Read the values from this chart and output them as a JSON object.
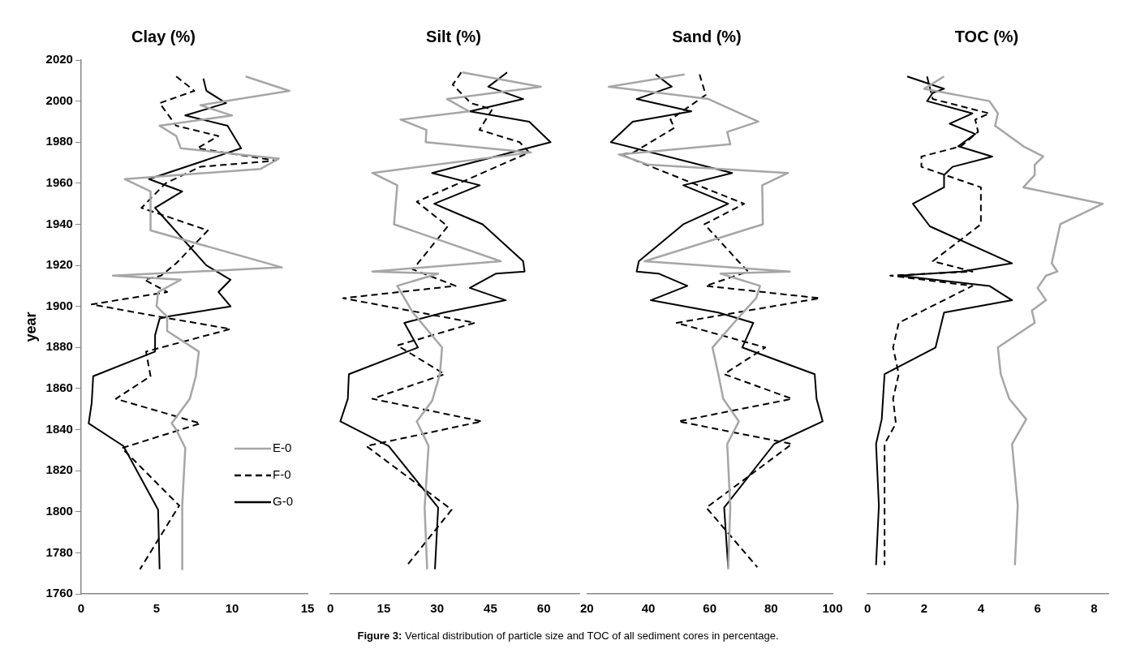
{
  "chart_data": [
    {
      "type": "line",
      "title": "Clay (%)",
      "ylabel": "year",
      "xlim": [
        0,
        15
      ],
      "xticks": [
        0,
        5,
        10,
        15
      ],
      "ylim": [
        1760,
        2020
      ],
      "yticks": [
        1760,
        1780,
        1800,
        1820,
        1840,
        1860,
        1880,
        1900,
        1920,
        1940,
        1960,
        1980,
        2000,
        2020
      ],
      "marker": "none",
      "legend": "bottom right",
      "annotations": [
        "Figure 3: Vertical distribution of particle size and TOC of all sediment cores in percentage."
      ],
      "series": [
        {
          "name": "E-0",
          "color": "#a6a6a6",
          "x": [
            10.9,
            13.8,
            7.9,
            10.0,
            5.2,
            6.3,
            6.6,
            13.1,
            11.9,
            2.9,
            4.6,
            4.6,
            13.3,
            2.1,
            6.6,
            5.1,
            5.0,
            5.7,
            5.7,
            7.8,
            7.6,
            7.2,
            6.4,
            6.0,
            6.3,
            6.9,
            6.7,
            6.7
          ],
          "values": [
            2012,
            2005,
            1998,
            1993,
            1988,
            1983,
            1977,
            1972,
            1967,
            1962,
            1956,
            1937,
            1919,
            1915,
            1913,
            1907,
            1900,
            1895,
            1888,
            1878,
            1866,
            1855,
            1847,
            1843,
            1840,
            1831,
            1803,
            1772
          ]
        },
        {
          "name": "F-0",
          "color": "#000000",
          "line_style": "dashed",
          "x": [
            6.3,
            7.5,
            5.2,
            6.3,
            9.1,
            7.7,
            12.9,
            7.9,
            5.6,
            4.0,
            8.4,
            6.3,
            5.3,
            4.2,
            5.7,
            0.7,
            4.4,
            9.9,
            4.3,
            4.6,
            2.3,
            7.9,
            2.7,
            6.5,
            3.9
          ],
          "values": [
            2012,
            2005,
            1999,
            1988,
            1983,
            1977,
            1971,
            1968,
            1960,
            1948,
            1937,
            1921,
            1915,
            1913,
            1907,
            1901,
            1896,
            1889,
            1878,
            1866,
            1855,
            1843,
            1831,
            1803,
            1772
          ]
        },
        {
          "name": "G-0",
          "color": "#000000",
          "x": [
            8.1,
            8.3,
            9.6,
            6.9,
            9.7,
            10.6,
            4.5,
            6.7,
            4.9,
            8.3,
            9.9,
            9.1,
            9.9,
            5.7,
            5.2,
            4.9,
            4.9,
            0.8,
            0.7,
            0.5,
            2.8,
            5.1,
            5.2
          ],
          "values": [
            2011,
            2005,
            1999,
            1993,
            1988,
            1977,
            1962,
            1956,
            1948,
            1920,
            1913,
            1907,
            1900,
            1895,
            1894,
            1886,
            1878,
            1866,
            1853,
            1843,
            1832,
            1801,
            1772
          ]
        }
      ]
    },
    {
      "type": "line",
      "title": "Silt (%)",
      "xlim": [
        0,
        70
      ],
      "xticks": [
        0,
        15,
        30,
        45,
        60
      ],
      "ylim": [
        1760,
        2020
      ],
      "tick_labels": "x",
      "marker": "none",
      "series": [
        {
          "color": "#a6a6a6",
          "x": [
            37.1,
            59.2,
            32.8,
            39.0,
            19.7,
            27.0,
            26.8,
            56.4,
            11.8,
            18.8,
            17.9,
            47.9,
            11.8,
            30.3,
            18.8,
            23.2,
            31.4,
            30.8,
            28.6,
            24.3,
            27.6,
            26.5,
            27.2
          ],
          "values": [
            2014,
            2007,
            2001,
            1995,
            1991,
            1986,
            1980,
            1975,
            1965,
            1959,
            1940,
            1922,
            1917,
            1916,
            1910,
            1897,
            1880,
            1867,
            1854,
            1844,
            1832,
            1802,
            1772
          ]
        },
        {
          "color": "#000000",
          "line_style": "dashed",
          "x": [
            36.8,
            34.4,
            39.5,
            45.5,
            41.9,
            53.2,
            55.9,
            24.3,
            33.0,
            23.2,
            35.2,
            3.6,
            40.6,
            18.8,
            32.1,
            11.8,
            42.6,
            10.1,
            34.1,
            21.6
          ],
          "values": [
            2014,
            2008,
            1999,
            1996,
            1986,
            1980,
            1975,
            1951,
            1939,
            1918,
            1910,
            1904,
            1892,
            1881,
            1867,
            1855,
            1844,
            1832,
            1801,
            1774
          ]
        },
        {
          "color": "#000000",
          "x": [
            49.7,
            44.4,
            54.2,
            39.2,
            55.9,
            61.9,
            28.6,
            42.0,
            29.2,
            42.8,
            54.2,
            54.6,
            46.6,
            39.2,
            49.3,
            31.9,
            20.8,
            24.6,
            5.2,
            4.9,
            2.8,
            16.4,
            30.3,
            29.4
          ],
          "values": [
            2014,
            2007,
            2001,
            1995,
            1990,
            1980,
            1965,
            1959,
            1950,
            1940,
            1922,
            1917,
            1916,
            1909,
            1903,
            1897,
            1892,
            1880,
            1867,
            1855,
            1844,
            1832,
            1802,
            1772
          ]
        }
      ]
    },
    {
      "type": "line",
      "title": "Sand (%)",
      "xlim": [
        20,
        100
      ],
      "xticks": [
        20,
        40,
        60,
        80,
        100
      ],
      "ylim": [
        1760,
        2020
      ],
      "tick_labels": "x",
      "marker": "none",
      "series": [
        {
          "color": "#a6a6a6",
          "x": [
            51.8,
            27.1,
            59.6,
            75.8,
            65.7,
            66.7,
            30.4,
            40.1,
            85.5,
            77.1,
            77.3,
            38.8,
            86.1,
            63.5,
            76.4,
            75.1,
            70.8,
            60.9,
            62.8,
            64.4,
            69.5,
            65.7,
            66.7,
            66.0
          ],
          "values": [
            2013,
            2007,
            2001,
            1990,
            1985,
            1979,
            1974,
            1969,
            1965,
            1959,
            1940,
            1922,
            1917,
            1916,
            1910,
            1904,
            1897,
            1880,
            1867,
            1855,
            1844,
            1833,
            1802,
            1772
          ]
        },
        {
          "color": "#000000",
          "line_style": "dashed",
          "x": [
            56.7,
            58.7,
            47.2,
            48.5,
            35.2,
            31.0,
            71.2,
            58.3,
            69.3,
            72.5,
            58.7,
            95.9,
            49.2,
            78.1,
            64.7,
            86.8,
            49.8,
            86.8,
            58.9,
            75.5
          ],
          "values": [
            2013,
            2003,
            1991,
            1987,
            1975,
            1974,
            1950,
            1940,
            1922,
            1917,
            1910,
            1904,
            1892,
            1880,
            1867,
            1855,
            1844,
            1833,
            1802,
            1773
          ]
        },
        {
          "color": "#000000",
          "x": [
            42.4,
            47.6,
            36.2,
            54.0,
            34.9,
            27.8,
            67.3,
            51.4,
            66.0,
            51.4,
            36.9,
            36.2,
            43.3,
            52.7,
            40.8,
            62.8,
            74.2,
            70.6,
            94.2,
            94.8,
            96.8,
            81.0,
            64.7,
            66.0
          ],
          "values": [
            2013,
            2007,
            2001,
            1995,
            1990,
            1980,
            1965,
            1959,
            1950,
            1940,
            1922,
            1917,
            1916,
            1910,
            1903,
            1897,
            1892,
            1880,
            1867,
            1855,
            1844,
            1833,
            1802,
            1773
          ]
        }
      ]
    },
    {
      "type": "line",
      "title": "TOC (%)",
      "xlim": [
        0,
        8.5
      ],
      "xticks": [
        0,
        2,
        4,
        6,
        8
      ],
      "ylim": [
        1760,
        2020
      ],
      "tick_labels": "x",
      "marker": "none",
      "series": [
        {
          "color": "#a6a6a6",
          "x": [
            2.7,
            2.0,
            4.3,
            4.6,
            4.5,
            5.5,
            6.2,
            5.9,
            5.9,
            5.5,
            8.3,
            6.8,
            6.5,
            6.7,
            6.3,
            6.0,
            6.3,
            5.8,
            5.9,
            4.6,
            4.7,
            5.0,
            5.6,
            5.1,
            5.3,
            5.2
          ],
          "values": [
            2012,
            2006,
            2000,
            1994,
            1988,
            1978,
            1973,
            1969,
            1964,
            1958,
            1950,
            1940,
            1921,
            1917,
            1915,
            1909,
            1903,
            1898,
            1892,
            1880,
            1867,
            1855,
            1845,
            1833,
            1803,
            1774
          ]
        },
        {
          "color": "#000000",
          "line_style": "dashed",
          "x": [
            2.1,
            2.3,
            4.3,
            3.8,
            3.9,
            3.3,
            1.9,
            1.9,
            4.0,
            4.0,
            2.3,
            3.7,
            0.8,
            3.7,
            1.1,
            0.9,
            1.1,
            0.9,
            1.0,
            0.6,
            0.6
          ],
          "values": [
            2012,
            2001,
            1994,
            1991,
            1985,
            1978,
            1973,
            1968,
            1958,
            1940,
            1922,
            1917,
            1915,
            1910,
            1892,
            1880,
            1867,
            1855,
            1843,
            1833,
            1774
          ]
        },
        {
          "color": "#000000",
          "x": [
            1.4,
            2.7,
            2.3,
            2.1,
            3.7,
            2.9,
            3.8,
            3.2,
            4.4,
            3.0,
            2.7,
            2.7,
            1.6,
            2.2,
            5.1,
            3.3,
            1.1,
            4.3,
            5.1,
            2.7,
            2.4,
            0.6,
            0.5,
            0.3,
            0.4,
            0.3
          ],
          "values": [
            2012,
            2006,
            2004,
            2000,
            1994,
            1989,
            1984,
            1978,
            1973,
            1968,
            1964,
            1958,
            1950,
            1939,
            1921,
            1917,
            1915,
            1910,
            1903,
            1897,
            1880,
            1867,
            1845,
            1833,
            1803,
            1774
          ]
        }
      ]
    }
  ]
}
